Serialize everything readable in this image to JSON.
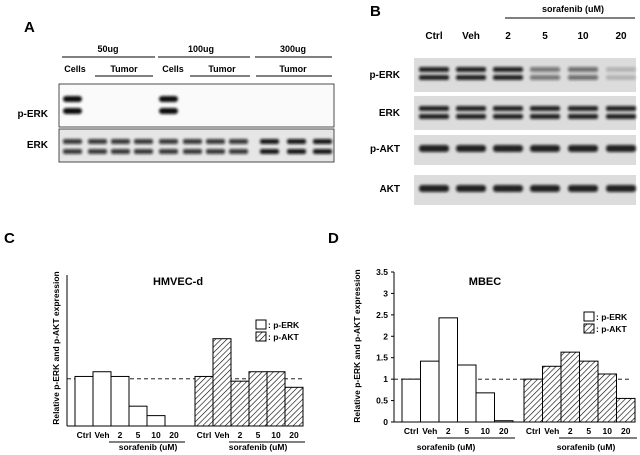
{
  "panels": {
    "a": "A",
    "b": "B",
    "c": "C",
    "d": "D"
  },
  "blotA": {
    "groups": [
      "50ug",
      "100ug",
      "300ug"
    ],
    "subs": [
      "Cells",
      "Tumor",
      "Cells",
      "Tumor",
      "Tumor"
    ],
    "rows": [
      "p-ERK",
      "ERK"
    ]
  },
  "blotB": {
    "header": "sorafenib (uM)",
    "lanes": [
      "Ctrl",
      "Veh",
      "2",
      "5",
      "10",
      "20"
    ],
    "rows": [
      "p-ERK",
      "ERK",
      "p-AKT",
      "AKT"
    ],
    "perk_intensity": [
      1,
      1,
      1,
      0.55,
      0.6,
      0.2
    ]
  },
  "chart_data": [
    {
      "type": "bar",
      "title": "HMVEC-d",
      "ylabel": "Relative p-ERK and p-AKT expression",
      "xlabel": "sorafenib (uM)",
      "categories": [
        "Ctrl",
        "Veh",
        "2",
        "5",
        "10",
        "20"
      ],
      "ylim": [
        0,
        3.2
      ],
      "yticks": [],
      "reference_line": 1.0,
      "series": [
        {
          "name": ": p-ERK",
          "pattern": "open",
          "values": [
            1.05,
            1.15,
            1.05,
            0.42,
            0.22,
            null
          ]
        },
        {
          "name": ": p-AKT",
          "pattern": "hatched",
          "values": [
            1.05,
            1.85,
            0.95,
            1.15,
            1.15,
            0.82
          ]
        }
      ]
    },
    {
      "type": "bar",
      "title": "MBEC",
      "ylabel": "Relative p-ERK and p-AKT expression",
      "xlabel": "sorafenib (uM)",
      "categories": [
        "Ctrl",
        "Veh",
        "2",
        "5",
        "10",
        "20"
      ],
      "ylim": [
        0,
        3.5
      ],
      "yticks": [
        "0",
        "0.5",
        "1",
        "1.5",
        "2",
        "2.5",
        "3",
        "3.5"
      ],
      "reference_line": 1.0,
      "series": [
        {
          "name": ": p-ERK",
          "pattern": "open",
          "values": [
            1.0,
            1.42,
            2.43,
            1.33,
            0.68,
            0.03
          ]
        },
        {
          "name": ": p-AKT",
          "pattern": "hatched",
          "values": [
            1.0,
            1.3,
            1.63,
            1.42,
            1.12,
            0.55
          ]
        }
      ]
    }
  ]
}
